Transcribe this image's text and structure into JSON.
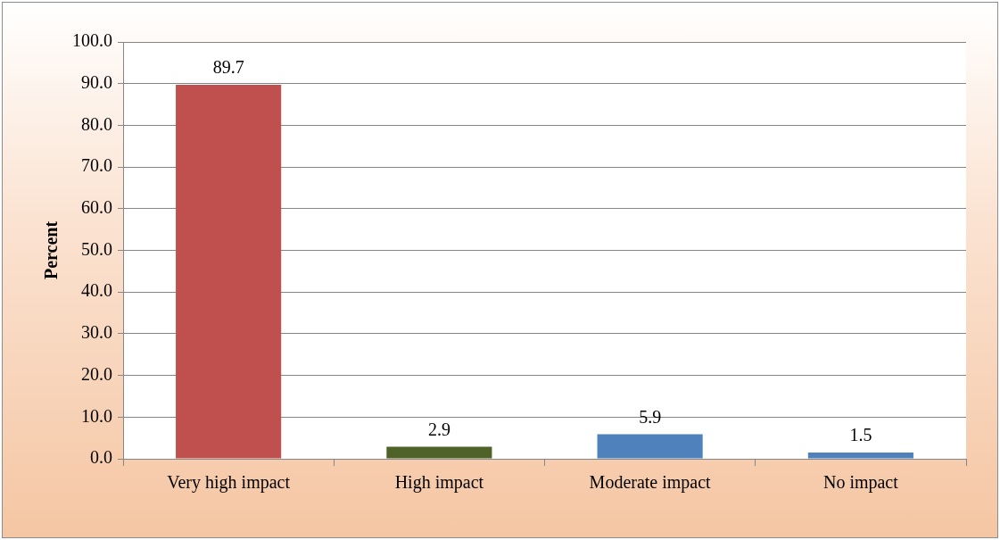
{
  "chart_data": {
    "type": "bar",
    "ylabel": "Percent",
    "categories": [
      "Very high impact",
      "High impact",
      "Moderate impact",
      "No impact"
    ],
    "values": [
      89.7,
      2.9,
      5.9,
      1.5
    ],
    "colors": [
      "#c0504d",
      "#4f6228",
      "#4f81bd",
      "#4f81bd"
    ],
    "ylim": [
      0,
      100
    ],
    "yticks": [
      {
        "value": 0,
        "label": "0.0"
      },
      {
        "value": 10,
        "label": "10.0"
      },
      {
        "value": 20,
        "label": "20.0"
      },
      {
        "value": 30,
        "label": "30.0"
      },
      {
        "value": 40,
        "label": "40.0"
      },
      {
        "value": 50,
        "label": "50.0"
      },
      {
        "value": 60,
        "label": "60.0"
      },
      {
        "value": 70,
        "label": "70.0"
      },
      {
        "value": 80,
        "label": "80.0"
      },
      {
        "value": 90,
        "label": "90.0"
      },
      {
        "value": 100,
        "label": "100.0"
      }
    ],
    "grid": "y",
    "data_labels": true,
    "legend": false
  }
}
